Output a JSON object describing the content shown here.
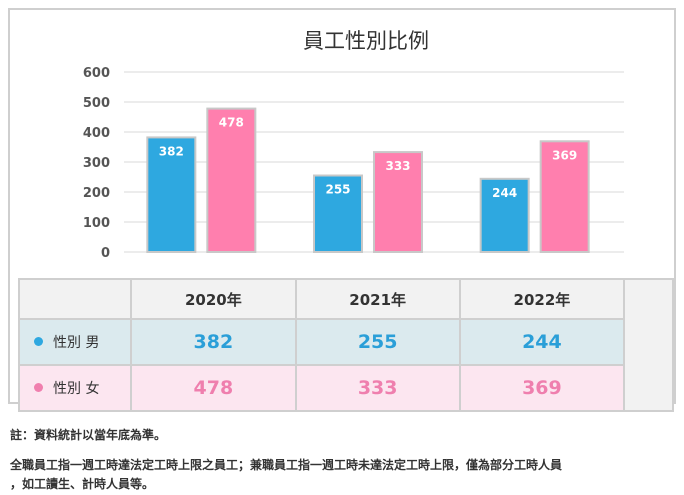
{
  "chart_data": {
    "type": "bar",
    "title": "員工性別比例",
    "categories": [
      "2020年",
      "2021年",
      "2022年"
    ],
    "series": [
      {
        "name": "性別 男",
        "color": "#2ea8e0",
        "values": [
          382,
          255,
          244
        ]
      },
      {
        "name": "性別 女",
        "color": "#ff7fae",
        "values": [
          478,
          333,
          369
        ]
      }
    ],
    "ylim": [
      0,
      600
    ],
    "yticks": [
      0,
      100,
      200,
      300,
      400,
      500,
      600
    ],
    "grid": true,
    "legend": "table-below"
  },
  "table": {
    "rows": [
      {
        "label": "性別 男",
        "values": [
          "382",
          "255",
          "244"
        ]
      },
      {
        "label": "性別 女",
        "values": [
          "478",
          "333",
          "369"
        ]
      }
    ]
  },
  "notes": {
    "line1": "註：資料統計以當年底為準。",
    "line2": "全職員工指一週工時達法定工時上限之員工；兼職員工指一週工時未達法定工時上限，僅為部分工時人員",
    "line3": "，如工讀生、計時人員等。"
  }
}
